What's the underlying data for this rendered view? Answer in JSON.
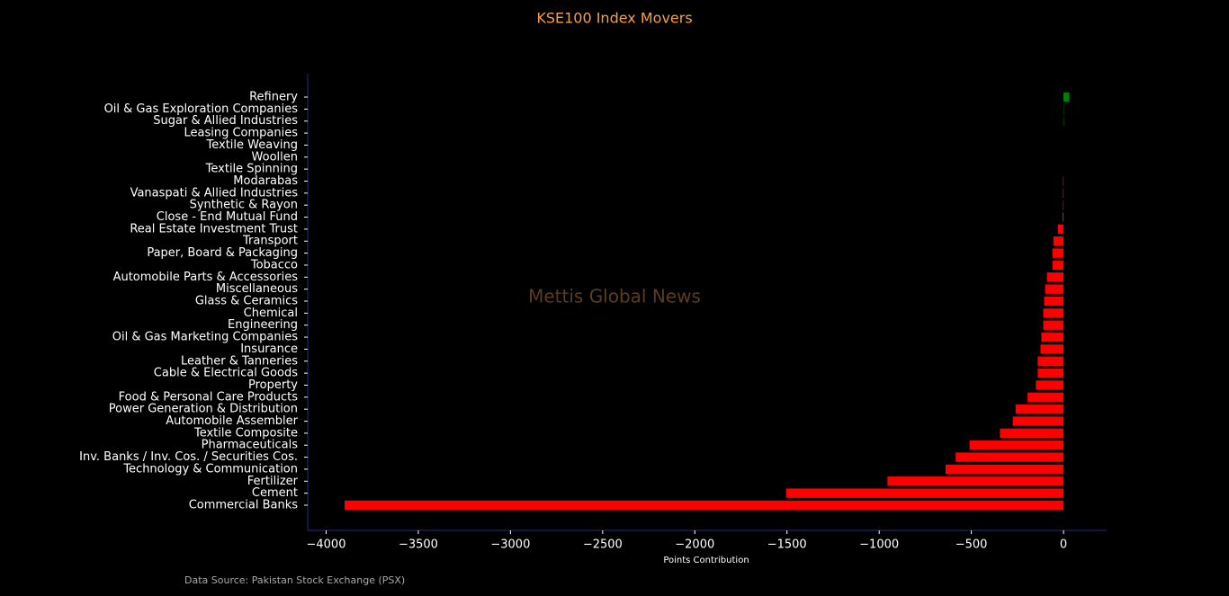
{
  "chart_data": {
    "type": "barh",
    "title": "KSE100 Index Movers",
    "xlabel": "Points Contribution",
    "watermark": "Mettis Global News",
    "source": "Data Source: Pakistan Stock Exchange (PSX)",
    "categories": [
      "Refinery",
      "Oil & Gas Exploration Companies",
      "Sugar & Allied Industries",
      "Leasing Companies",
      "Textile Weaving",
      "Woollen",
      "Textile Spinning",
      "Modarabas",
      "Vanaspati & Allied Industries",
      "Synthetic & Rayon",
      "Close - End Mutual Fund",
      "Real Estate Investment Trust",
      "Transport",
      "Paper, Board & Packaging",
      "Tobacco",
      "Automobile Parts & Accessories",
      "Miscellaneous",
      "Glass & Ceramics",
      "Chemical",
      "Engineering",
      "Oil & Gas Marketing Companies",
      "Insurance",
      "Leather & Tanneries",
      "Cable & Electrical Goods",
      "Property",
      "Food & Personal Care Products",
      "Power Generation & Distribution",
      "Automobile Assembler",
      "Textile Composite",
      "Pharmaceuticals",
      "Inv. Banks / Inv. Cos. / Securities Cos.",
      "Technology & Communication",
      "Fertilizer",
      "Cement",
      "Commercial Banks"
    ],
    "values": [
      32,
      2,
      2,
      0,
      0,
      0,
      0,
      -3,
      -3,
      -3,
      -5,
      -30,
      -55,
      -60,
      -60,
      -90,
      -100,
      -105,
      -110,
      -110,
      -120,
      -125,
      -140,
      -140,
      -150,
      -195,
      -260,
      -275,
      -345,
      -510,
      -585,
      -640,
      -955,
      -1505,
      -3900
    ],
    "color_positive": "#008000",
    "color_negative": "#ff0000",
    "xlim": [
      -4100,
      234
    ],
    "xticks": [
      {
        "value": -4000,
        "label": "−4000"
      },
      {
        "value": -3500,
        "label": "−3500"
      },
      {
        "value": -3000,
        "label": "−3000"
      },
      {
        "value": -2500,
        "label": "−2500"
      },
      {
        "value": -2000,
        "label": "−2000"
      },
      {
        "value": -1500,
        "label": "−1500"
      },
      {
        "value": -1000,
        "label": "−1000"
      },
      {
        "value": -500,
        "label": "−500"
      },
      0
    ],
    "grid": false
  }
}
